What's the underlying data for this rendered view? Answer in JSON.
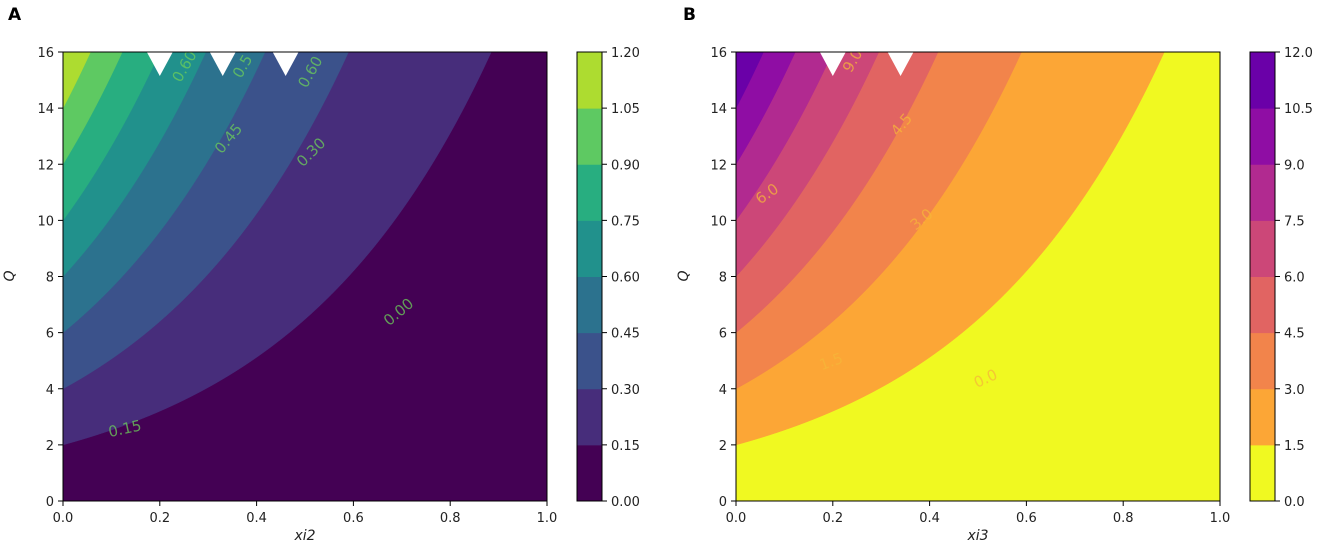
{
  "chart_data": [
    {
      "panel": "A",
      "type": "contourf",
      "x_ticks": [
        "0.0",
        "0.2",
        "0.4",
        "0.6",
        "0.8",
        "1.0"
      ],
      "y_ticks": [
        "0",
        "2",
        "4",
        "6",
        "8",
        "10",
        "12",
        "14",
        "16"
      ],
      "xlim": [
        0,
        1
      ],
      "ylim": [
        0,
        16
      ],
      "xlabel": "xi2",
      "ylabel": "Q",
      "levels": [
        0.0,
        0.15,
        0.3,
        0.45,
        0.6,
        0.75,
        0.9,
        1.05,
        1.2
      ],
      "colorbar_ticks": [
        "0.00",
        "0.15",
        "0.30",
        "0.45",
        "0.60",
        "0.75",
        "0.90",
        "1.05",
        "1.20"
      ],
      "band_colors": [
        "#440154",
        "#472d7b",
        "#3b528b",
        "#2c728e",
        "#21918c",
        "#28ae80",
        "#5ec962",
        "#addc30"
      ],
      "colorbar_reversed": false,
      "contour_labels": [
        {
          "text": "0.00",
          "x": 0.7,
          "y": 6.6,
          "angle": -40
        },
        {
          "text": "0.15",
          "x": 0.13,
          "y": 2.4,
          "angle": -12
        },
        {
          "text": "0.30",
          "x": 0.52,
          "y": 12.3,
          "angle": -45
        },
        {
          "text": "0.45",
          "x": 0.35,
          "y": 12.8,
          "angle": -50
        },
        {
          "text": "0.5",
          "x": 0.38,
          "y": 15.4,
          "angle": -60
        },
        {
          "text": "0.60",
          "x": 0.26,
          "y": 15.4,
          "angle": -60
        },
        {
          "text": "0.60",
          "x": 0.52,
          "y": 15.2,
          "angle": -60
        }
      ]
    },
    {
      "panel": "B",
      "type": "contourf",
      "x_ticks": [
        "0.0",
        "0.2",
        "0.4",
        "0.6",
        "0.8",
        "1.0"
      ],
      "y_ticks": [
        "0",
        "2",
        "4",
        "6",
        "8",
        "10",
        "12",
        "14",
        "16"
      ],
      "xlim": [
        0,
        1
      ],
      "ylim": [
        0,
        16
      ],
      "xlabel": "xi3",
      "ylabel": "Q",
      "levels": [
        0.0,
        1.5,
        3.0,
        4.5,
        6.0,
        7.5,
        9.0,
        10.5,
        12.0
      ],
      "colorbar_ticks": [
        "0.0",
        "1.5",
        "3.0",
        "4.5",
        "6.0",
        "7.5",
        "9.0",
        "10.5",
        "12.0"
      ],
      "band_colors": [
        "#f0f921",
        "#fca636",
        "#f2844b",
        "#e16462",
        "#cc4778",
        "#b12a90",
        "#8f0da4",
        "#6a00a8"
      ],
      "colorbar_reversed": true,
      "contour_labels": [
        {
          "text": "0.0",
          "x": 0.52,
          "y": 4.2,
          "angle": -25
        },
        {
          "text": "1.5",
          "x": 0.2,
          "y": 4.8,
          "angle": -20
        },
        {
          "text": "3.0",
          "x": 0.39,
          "y": 9.9,
          "angle": -40
        },
        {
          "text": "4.5",
          "x": 0.35,
          "y": 13.3,
          "angle": -50
        },
        {
          "text": "6.0",
          "x": 0.07,
          "y": 10.8,
          "angle": -35
        },
        {
          "text": "9.0",
          "x": 0.25,
          "y": 15.6,
          "angle": -60
        }
      ]
    }
  ]
}
